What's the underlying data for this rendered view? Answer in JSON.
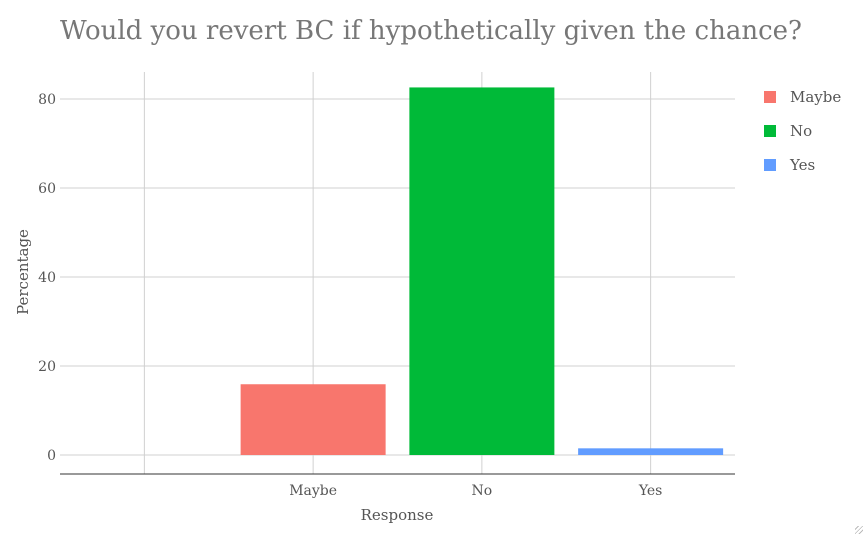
{
  "chart_data": {
    "type": "bar",
    "title": "Would you revert BC if hypothetically given the chance?",
    "xlabel": "Response",
    "ylabel": "Percentage",
    "categories": [
      "Maybe",
      "No",
      "Yes"
    ],
    "values": [
      15.9,
      82.6,
      1.5
    ],
    "colors": [
      "#F8766D",
      "#00BA38",
      "#619CFF"
    ],
    "ylim": [
      -4,
      90
    ],
    "yticks": [
      0,
      20,
      40,
      60,
      80
    ],
    "grid": true,
    "legend": {
      "position": "right",
      "entries": [
        "Maybe",
        "No",
        "Yes"
      ]
    }
  }
}
